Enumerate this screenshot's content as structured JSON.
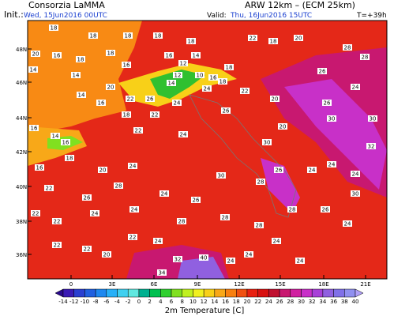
{
  "header": {
    "left": "Consorzia LaMMA",
    "model": "ARW 12km – (ECM 25km)",
    "init_label": "Init.:",
    "init": "Wed, 15Jun2016 00UTC",
    "valid_label": "Valid:",
    "valid": "Thu, 16Jun2016 15UTC",
    "step": "T=+39h"
  },
  "lat_labels": [
    "48N",
    "46N",
    "44N",
    "42N",
    "40N",
    "38N",
    "36N"
  ],
  "lon_labels": [
    "0",
    "3E",
    "6E",
    "9E",
    "12E",
    "15E",
    "18E",
    "21E"
  ],
  "stations": [
    18,
    18,
    18,
    20,
    16,
    18,
    18,
    18,
    18,
    22,
    18,
    20,
    14,
    14,
    16,
    16,
    12,
    14,
    12,
    14,
    10,
    16,
    18,
    18,
    20,
    22,
    26,
    24,
    22,
    20,
    14,
    16,
    18,
    22,
    24,
    26,
    20,
    26,
    28,
    26,
    28,
    24,
    30,
    30,
    32,
    22,
    24,
    16,
    14,
    16,
    16,
    18,
    20,
    24,
    22,
    26,
    28,
    24,
    26,
    30,
    30,
    28,
    26,
    28,
    24,
    24,
    24,
    22,
    22,
    24,
    24,
    28,
    28,
    28,
    26,
    30,
    24,
    22,
    22,
    22,
    20,
    24,
    24,
    34,
    32,
    40,
    24,
    24,
    24
  ],
  "colorbar": {
    "title": "2m Temperature [C]",
    "ticks": [
      -14,
      -12,
      -10,
      -8,
      -6,
      -4,
      -2,
      0,
      2,
      4,
      6,
      8,
      10,
      12,
      14,
      16,
      18,
      20,
      22,
      24,
      26,
      28,
      30,
      32,
      34,
      36,
      38,
      40
    ],
    "colors": [
      "#2a0a8c",
      "#3a1ab4",
      "#2a3fd0",
      "#2060e0",
      "#1e88f0",
      "#28b0f8",
      "#40d0f0",
      "#60e8e0",
      "#00b090",
      "#00c050",
      "#30d030",
      "#80e020",
      "#c0f020",
      "#f0f020",
      "#f8d018",
      "#f8a818",
      "#f88010",
      "#f05010",
      "#e82010",
      "#d81010",
      "#c01030",
      "#c81870",
      "#d020a0",
      "#c830c8",
      "#a840d8",
      "#9060e0",
      "#8070e8",
      "#9090f0",
      "#b0a0f8"
    ]
  }
}
